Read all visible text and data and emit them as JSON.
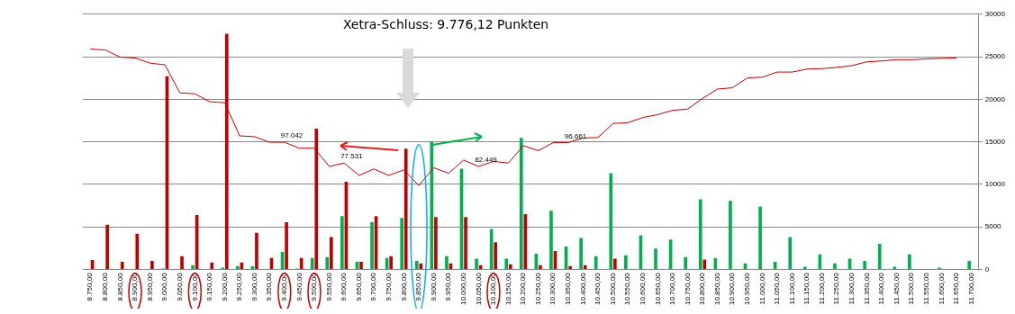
{
  "chart_data": {
    "type": "bar",
    "title": "Xetra-Schluss: 9.776,12 Punkten",
    "categories": [
      "8.750,00",
      "8.800,00",
      "8.850,00",
      "8.900,00",
      "8.950,00",
      "9.000,00",
      "9.050,00",
      "9.100,00",
      "9.150,00",
      "9.200,00",
      "9.250,00",
      "9.300,00",
      "9.350,00",
      "9.400,00",
      "9.450,00",
      "9.500,00",
      "9.550,00",
      "9.600,00",
      "9.650,00",
      "9.700,00",
      "9.750,00",
      "9.800,00",
      "9.850,00",
      "9.900,00",
      "9.950,00",
      "10.000,00",
      "10.050,00",
      "10.100,00",
      "10.150,00",
      "10.200,00",
      "10.250,00",
      "10.300,00",
      "10.350,00",
      "10.400,00",
      "10.450,00",
      "10.500,00",
      "10.550,00",
      "10.600,00",
      "10.650,00",
      "10.700,00",
      "10.750,00",
      "10.800,00",
      "10.850,00",
      "10.900,00",
      "10.950,00",
      "11.000,00",
      "11.050,00",
      "11.100,00",
      "11.150,00",
      "11.200,00",
      "11.250,00",
      "11.300,00",
      "11.350,00",
      "11.400,00",
      "11.450,00",
      "11.500,00",
      "11.550,00",
      "11.600,00",
      "11.650,00",
      "11.700,00"
    ],
    "series": [
      {
        "type": "bar",
        "color": "#00b050",
        "values": [
          null,
          null,
          null,
          null,
          null,
          100,
          null,
          500,
          null,
          200,
          400,
          400,
          null,
          2050,
          100,
          1350,
          1450,
          6250,
          900,
          5550,
          1350,
          6050,
          1000,
          15000,
          1550,
          11850,
          1250,
          4750,
          1250,
          15450,
          1850,
          6900,
          2700,
          3700,
          1550,
          11300,
          1650,
          4000,
          2450,
          3500,
          1450,
          8250,
          1350,
          8050,
          700,
          7400,
          900,
          3800,
          300,
          1750,
          700,
          1250,
          1000,
          3000,
          300,
          1750,
          null,
          200,
          null,
          1000
        ]
      },
      {
        "type": "bar",
        "color": "#c00000",
        "values": [
          1100,
          5250,
          900,
          4200,
          1000,
          22700,
          1550,
          6400,
          800,
          27700,
          800,
          4300,
          1350,
          5550,
          1350,
          16550,
          3800,
          10300,
          900,
          6250,
          1550,
          14200,
          700,
          6150,
          700,
          6150,
          500,
          3200,
          600,
          6500,
          500,
          2150,
          400,
          500,
          null,
          1250,
          null,
          null,
          null,
          null,
          null,
          1150,
          null,
          null,
          null,
          null,
          null,
          null,
          null,
          null,
          null,
          null,
          null,
          null,
          null,
          null,
          null,
          null,
          null,
          null
        ]
      },
      {
        "type": "line",
        "color": "#c00000",
        "values": [
          25900,
          25800,
          24950,
          24850,
          24250,
          24050,
          20750,
          20650,
          19700,
          19600,
          15700,
          15600,
          14950,
          14950,
          14250,
          14250,
          12100,
          12500,
          11050,
          11800,
          11050,
          11700,
          9850,
          11950,
          11300,
          12850,
          12100,
          12700,
          12500,
          14550,
          13950,
          14900,
          14900,
          15450,
          15500,
          17150,
          17250,
          17850,
          18200,
          18700,
          18850,
          20100,
          21200,
          21350,
          22500,
          22600,
          23200,
          23200,
          23550,
          23600,
          23750,
          23950,
          24400,
          24500,
          24650,
          24650,
          24750,
          24800,
          24850,
          null
        ]
      }
    ],
    "ylim": [
      0,
      30000
    ],
    "yticks": [
      0,
      5000,
      10000,
      15000,
      20000,
      25000,
      30000
    ],
    "grid": "y",
    "marker": "none",
    "annotations": [
      {
        "text": "97.042",
        "x": "9.400,00",
        "y": 14950
      },
      {
        "text": "77.531",
        "x": "9.600,00",
        "y": 12500
      },
      {
        "text": "82.449",
        "x": "10.050,00",
        "y": 12100
      },
      {
        "text": "96.661",
        "x": "10.350,00",
        "y": 14900
      }
    ]
  }
}
